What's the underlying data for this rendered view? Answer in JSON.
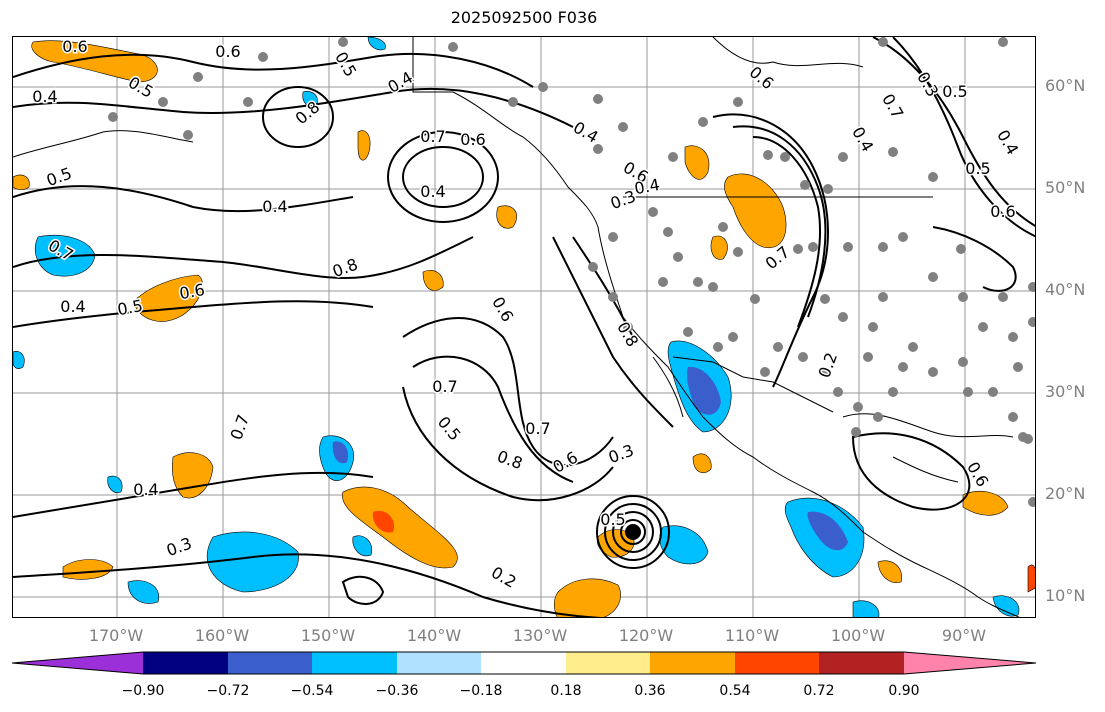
{
  "title": "2025092500 F036",
  "lat_labels": [
    "60°N",
    "50°N",
    "40°N",
    "30°N",
    "20°N",
    "10°N"
  ],
  "lon_labels": [
    "170°W",
    "160°W",
    "150°W",
    "140°W",
    "130°W",
    "120°W",
    "110°W",
    "100°W",
    "90°W"
  ],
  "contour_labels": [
    "0.6",
    "0.4",
    "0.5",
    "0.8",
    "0.5",
    "0.4",
    "0.6",
    "0.7",
    "0.6",
    "0.4",
    "0.4",
    "0.5",
    "0.8",
    "0.7",
    "0.6",
    "0.4",
    "0.5",
    "0.6",
    "0.7",
    "0.4",
    "0.3",
    "0.8",
    "0.7",
    "0.6",
    "0.5",
    "0.7",
    "0.8",
    "0.6",
    "0.4",
    "0.3",
    "0.3",
    "0.2",
    "0.5",
    "0.2",
    "0.4",
    "0.6",
    "0.5",
    "0.7",
    "0.3",
    "0.6",
    "0.5",
    "0.4",
    "0.4",
    "0.7",
    "0.6"
  ],
  "colorbar": {
    "ticks": [
      "−0.90",
      "−0.72",
      "−0.54",
      "−0.36",
      "−0.18",
      "0.18",
      "0.36",
      "0.54",
      "0.72",
      "0.90"
    ],
    "colors": [
      "#9b30d8",
      "#000080",
      "#3a5fcd",
      "#00bfff",
      "#b0e2ff",
      "#ffffff",
      "#ffec8b",
      "#ffa500",
      "#ff4500",
      "#b22222",
      "#ff83aa"
    ]
  }
}
